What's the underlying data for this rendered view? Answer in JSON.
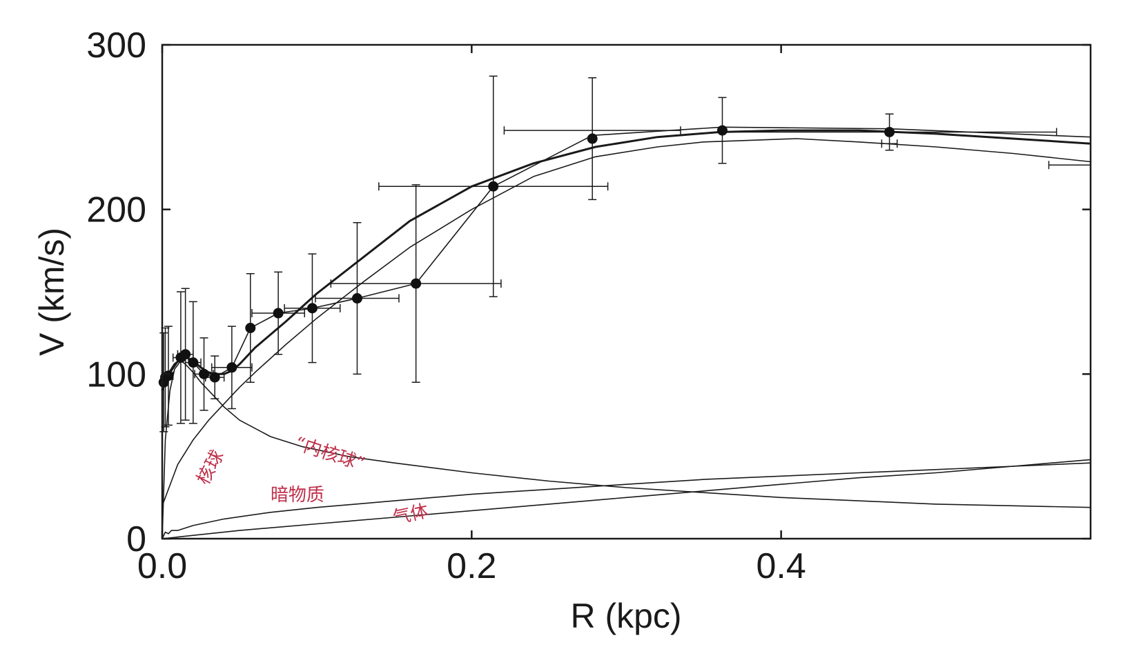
{
  "chart_data": {
    "type": "line",
    "title": "",
    "xlabel": "R (kpc)",
    "ylabel": "V (km/s)",
    "xlim": [
      0,
      0.6
    ],
    "ylim": [
      0,
      300
    ],
    "x_ticks": [
      0.0,
      0.2,
      0.4
    ],
    "x_tick_labels": [
      "0.0",
      "0.2",
      "0.4"
    ],
    "y_ticks": [
      0,
      100,
      200,
      300
    ],
    "y_tick_labels": [
      "0",
      "100",
      "200",
      "300"
    ],
    "grid": false,
    "colors": {
      "axis": "#1a1a1a",
      "line": "#1a1a1a",
      "annotation": "#c0304a"
    },
    "observed": {
      "points": [
        {
          "x": 0.001,
          "y": 95,
          "xerr": 0.002,
          "yerr": 30
        },
        {
          "x": 0.002,
          "y": 98,
          "xerr": 0.002,
          "yerr": 30
        },
        {
          "x": 0.004,
          "y": 99,
          "xerr": 0.003,
          "yerr": 30
        },
        {
          "x": 0.012,
          "y": 110,
          "xerr": 0.005,
          "yerr": 40
        },
        {
          "x": 0.015,
          "y": 112,
          "xerr": 0.005,
          "yerr": 40
        },
        {
          "x": 0.02,
          "y": 107,
          "xerr": 0.005,
          "yerr": 37
        },
        {
          "x": 0.027,
          "y": 100,
          "xerr": 0.006,
          "yerr": 22
        },
        {
          "x": 0.034,
          "y": 98,
          "xerr": 0.006,
          "yerr": 13
        },
        {
          "x": 0.045,
          "y": 104,
          "xerr": 0.013,
          "yerr": 25
        },
        {
          "x": 0.057,
          "y": 128,
          "xerr": 0.0,
          "yerr": 33
        },
        {
          "x": 0.075,
          "y": 137,
          "xerr": 0.017,
          "yerr": 25
        },
        {
          "x": 0.097,
          "y": 140,
          "xerr": 0.018,
          "yerr": 33
        },
        {
          "x": 0.126,
          "y": 146,
          "xerr": 0.027,
          "yerr": 46
        },
        {
          "x": 0.164,
          "y": 155,
          "xerr": 0.055,
          "yerr": 60
        },
        {
          "x": 0.214,
          "y": 214,
          "xerr": 0.074,
          "yerr": 67
        },
        {
          "x": 0.278,
          "y": 243,
          "xerr": 0.0,
          "yerr": 37
        },
        {
          "x": 0.362,
          "y": 248,
          "xerr": 0.0,
          "yerr": 20
        },
        {
          "x": 0.47,
          "y": 247,
          "xerr": 0.0,
          "yerr": 11
        }
      ],
      "extra_error_bars": [
        {
          "x": 0.278,
          "y": 248,
          "xerr": 0.057
        },
        {
          "x": 0.47,
          "y": 247,
          "xerr": 0.108
        },
        {
          "x": 0.47,
          "y": 240,
          "xerr": 0.005
        },
        {
          "x": 0.587,
          "y": 227,
          "xerr": 0.014
        }
      ]
    },
    "series": [
      {
        "line_width": 3.0,
        "x": [
          0.0,
          0.001,
          0.004,
          0.008,
          0.012,
          0.016,
          0.02,
          0.025,
          0.03,
          0.035,
          0.04,
          0.045,
          0.05,
          0.06,
          0.08,
          0.1,
          0.13,
          0.16,
          0.2,
          0.24,
          0.28,
          0.32,
          0.36,
          0.4,
          0.45,
          0.5,
          0.55,
          0.6
        ],
        "y": [
          90,
          95,
          100,
          106,
          109,
          110,
          108,
          104,
          101,
          100,
          100,
          102,
          106,
          116,
          132,
          149,
          171,
          193,
          214,
          228,
          238,
          244,
          247,
          248,
          248,
          246,
          243,
          240
        ]
      },
      {
        "line_width": 1.6,
        "x": [
          0.0,
          0.01,
          0.02,
          0.03,
          0.04,
          0.05,
          0.06,
          0.08,
          0.1,
          0.13,
          0.16,
          0.2,
          0.24,
          0.28,
          0.32,
          0.35,
          0.38,
          0.41,
          0.45,
          0.5,
          0.55,
          0.6
        ],
        "y": [
          20,
          45,
          60,
          72,
          82,
          92,
          101,
          118,
          134,
          156,
          177,
          200,
          220,
          232,
          238,
          241,
          242,
          243,
          241,
          238,
          234,
          229
        ]
      },
      {
        "line_width": 1.6,
        "x": [
          0.001,
          0.002,
          0.004,
          0.012,
          0.015,
          0.02,
          0.027,
          0.034,
          0.045,
          0.057,
          0.075,
          0.097,
          0.126,
          0.164,
          0.214,
          0.278,
          0.362,
          0.47,
          0.6
        ],
        "y": [
          95,
          98,
          99,
          110,
          112,
          107,
          100,
          98,
          104,
          128,
          137,
          140,
          146,
          155,
          214,
          245,
          250,
          249,
          244
        ]
      },
      {
        "line_width": 1.6,
        "x": [
          0.0,
          0.002,
          0.005,
          0.008,
          0.012,
          0.015,
          0.02,
          0.025,
          0.03,
          0.04,
          0.05,
          0.07,
          0.09,
          0.12,
          0.15,
          0.2,
          0.25,
          0.3,
          0.35,
          0.4,
          0.45,
          0.5,
          0.55,
          0.6
        ],
        "y": [
          0,
          60,
          90,
          103,
          108,
          106,
          101,
          95,
          90,
          80,
          72,
          62,
          56,
          50,
          46,
          40,
          35,
          31,
          28,
          25,
          23,
          21,
          20,
          19
        ]
      },
      {
        "line_width": 1.6,
        "x": [
          0.0,
          0.002,
          0.004,
          0.006,
          0.01,
          0.02,
          0.04,
          0.07,
          0.1,
          0.15,
          0.2,
          0.25,
          0.3,
          0.35,
          0.4,
          0.45,
          0.5,
          0.55,
          0.6
        ],
        "y": [
          0,
          4,
          3,
          5,
          5,
          8,
          12,
          16,
          19,
          23,
          27,
          30,
          33,
          36,
          38,
          40,
          42,
          44,
          46
        ]
      },
      {
        "line_width": 1.6,
        "x": [
          0.0,
          0.05,
          0.1,
          0.15,
          0.2,
          0.25,
          0.3,
          0.35,
          0.4,
          0.45,
          0.5,
          0.55,
          0.6
        ],
        "y": [
          0,
          5,
          9,
          13,
          17,
          21,
          25,
          29,
          33,
          37,
          40,
          44,
          48
        ]
      }
    ],
    "annotations": [
      {
        "text": "核球",
        "x": 0.029,
        "y": 32,
        "rotation": -62
      },
      {
        "text": "“内核球”",
        "x": 0.085,
        "y": 55,
        "rotation": 18
      },
      {
        "text": "暗物质",
        "x": 0.07,
        "y": 23,
        "rotation": 0
      },
      {
        "text": "气体",
        "x": 0.15,
        "y": 9,
        "rotation": -12
      }
    ]
  }
}
